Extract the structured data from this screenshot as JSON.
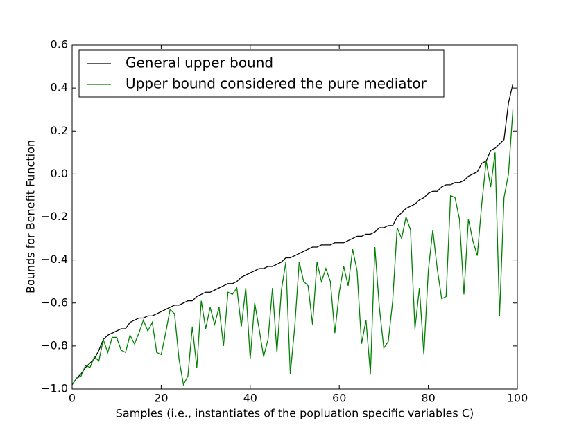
{
  "chart_data": {
    "type": "line",
    "x_label": "Samples (i.e., instantiates of the popluation specific variables C)",
    "y_label": "Bounds for Benefit Function",
    "x": [
      0,
      1,
      2,
      3,
      4,
      5,
      6,
      7,
      8,
      9,
      10,
      11,
      12,
      13,
      14,
      15,
      16,
      17,
      18,
      19,
      20,
      21,
      22,
      23,
      24,
      25,
      26,
      27,
      28,
      29,
      30,
      31,
      32,
      33,
      34,
      35,
      36,
      37,
      38,
      39,
      40,
      41,
      42,
      43,
      44,
      45,
      46,
      47,
      48,
      49,
      50,
      51,
      52,
      53,
      54,
      55,
      56,
      57,
      58,
      59,
      60,
      61,
      62,
      63,
      64,
      65,
      66,
      67,
      68,
      69,
      70,
      71,
      72,
      73,
      74,
      75,
      76,
      77,
      78,
      79,
      80,
      81,
      82,
      83,
      84,
      85,
      86,
      87,
      88,
      89,
      90,
      91,
      92,
      93,
      94,
      95,
      96,
      97,
      98,
      99
    ],
    "series": [
      {
        "name": "General upper bound",
        "color": "#000000",
        "values": [
          -0.98,
          -0.95,
          -0.93,
          -0.9,
          -0.88,
          -0.86,
          -0.82,
          -0.77,
          -0.75,
          -0.74,
          -0.73,
          -0.72,
          -0.72,
          -0.69,
          -0.68,
          -0.67,
          -0.67,
          -0.66,
          -0.66,
          -0.65,
          -0.64,
          -0.63,
          -0.62,
          -0.61,
          -0.61,
          -0.6,
          -0.59,
          -0.59,
          -0.57,
          -0.56,
          -0.55,
          -0.55,
          -0.54,
          -0.53,
          -0.52,
          -0.51,
          -0.51,
          -0.5,
          -0.48,
          -0.47,
          -0.46,
          -0.45,
          -0.44,
          -0.44,
          -0.43,
          -0.43,
          -0.42,
          -0.41,
          -0.39,
          -0.39,
          -0.38,
          -0.37,
          -0.36,
          -0.35,
          -0.34,
          -0.34,
          -0.33,
          -0.33,
          -0.33,
          -0.32,
          -0.32,
          -0.32,
          -0.31,
          -0.3,
          -0.29,
          -0.29,
          -0.28,
          -0.28,
          -0.27,
          -0.25,
          -0.25,
          -0.24,
          -0.24,
          -0.2,
          -0.18,
          -0.16,
          -0.15,
          -0.14,
          -0.12,
          -0.11,
          -0.09,
          -0.08,
          -0.08,
          -0.06,
          -0.05,
          -0.05,
          -0.04,
          -0.04,
          -0.03,
          -0.01,
          0.0,
          0.01,
          0.05,
          0.06,
          0.11,
          0.12,
          0.14,
          0.16,
          0.33,
          0.42
        ]
      },
      {
        "name": "Upper bound considered the pure mediator",
        "color": "#008000",
        "values": [
          -0.98,
          -0.95,
          -0.94,
          -0.89,
          -0.9,
          -0.85,
          -0.87,
          -0.77,
          -0.83,
          -0.76,
          -0.76,
          -0.82,
          -0.83,
          -0.75,
          -0.79,
          -0.74,
          -0.68,
          -0.73,
          -0.69,
          -0.83,
          -0.84,
          -0.74,
          -0.63,
          -0.65,
          -0.86,
          -0.98,
          -0.94,
          -0.71,
          -0.9,
          -0.59,
          -0.72,
          -0.62,
          -0.7,
          -0.62,
          -0.8,
          -0.55,
          -0.56,
          -0.53,
          -0.71,
          -0.53,
          -0.86,
          -0.6,
          -0.72,
          -0.85,
          -0.77,
          -0.53,
          -0.83,
          -0.54,
          -0.41,
          -0.93,
          -0.71,
          -0.41,
          -0.5,
          -0.52,
          -0.7,
          -0.41,
          -0.5,
          -0.44,
          -0.5,
          -0.74,
          -0.55,
          -0.43,
          -0.52,
          -0.35,
          -0.45,
          -0.79,
          -0.68,
          -0.93,
          -0.34,
          -0.62,
          -0.81,
          -0.78,
          -0.59,
          -0.25,
          -0.3,
          -0.2,
          -0.26,
          -0.72,
          -0.53,
          -0.84,
          -0.45,
          -0.26,
          -0.44,
          -0.58,
          -0.57,
          -0.1,
          -0.11,
          -0.21,
          -0.56,
          -0.21,
          -0.31,
          -0.38,
          -0.14,
          0.06,
          -0.06,
          0.1,
          -0.66,
          -0.11,
          0.0,
          0.3
        ]
      }
    ],
    "xlim": [
      0,
      100
    ],
    "xticks": [
      0,
      20,
      40,
      60,
      80,
      100
    ],
    "ylim": [
      -1.0,
      0.6
    ],
    "yticks": [
      {
        "value": -1.0,
        "label": "−1.0"
      },
      {
        "value": -0.8,
        "label": "−0.8"
      },
      {
        "value": -0.6,
        "label": "−0.6"
      },
      {
        "value": -0.4,
        "label": "−0.4"
      },
      {
        "value": -0.2,
        "label": "−0.2"
      },
      {
        "value": 0.0,
        "label": "0.0"
      },
      {
        "value": 0.2,
        "label": "0.2"
      },
      {
        "value": 0.4,
        "label": "0.4"
      },
      {
        "value": 0.6,
        "label": "0.6"
      }
    ],
    "legend": "upper left",
    "grid": false
  }
}
